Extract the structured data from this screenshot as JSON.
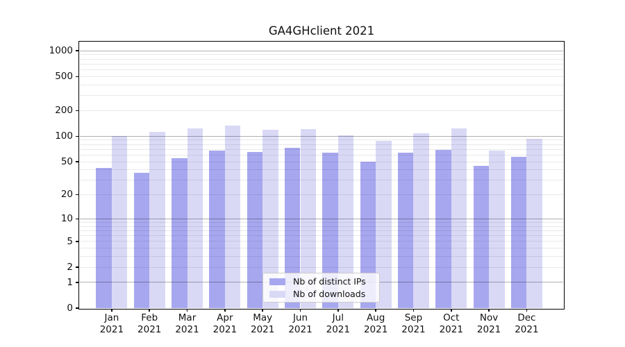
{
  "chart_data": {
    "type": "bar",
    "title": "GA4GHclient 2021",
    "xlabel": "",
    "ylabel": "",
    "categories": [
      "Jan 2021",
      "Feb 2021",
      "Mar 2021",
      "Apr 2021",
      "May 2021",
      "Jun 2021",
      "Jul 2021",
      "Aug 2021",
      "Sep 2021",
      "Oct 2021",
      "Nov 2021",
      "Dec 2021"
    ],
    "series": [
      {
        "name": "Nb of distinct IPs",
        "color": "#a7a7ef",
        "values": [
          42,
          37,
          55,
          68,
          65,
          73,
          64,
          50,
          64,
          69,
          45,
          57
        ]
      },
      {
        "name": "Nb of downloads",
        "color": "#d9d9f6",
        "values": [
          100,
          113,
          124,
          134,
          120,
          122,
          102,
          88,
          109,
          123,
          68,
          93
        ]
      }
    ],
    "y_scale": "symlog",
    "y_ticks": [
      0,
      1,
      2,
      5,
      10,
      20,
      50,
      100,
      200,
      500,
      1000
    ],
    "y_range": [
      0,
      1260
    ],
    "grid": "horizontal major and minor",
    "legend_position": "lower center inside plot"
  },
  "colors": {
    "distinct_ips_bar": "#a7a7ef",
    "downloads_bar": "#d9d9f6",
    "major_grid": "#b0b0b0",
    "minor_grid": "#e9e9e9",
    "spine": "#000000",
    "background": "#ffffff"
  }
}
